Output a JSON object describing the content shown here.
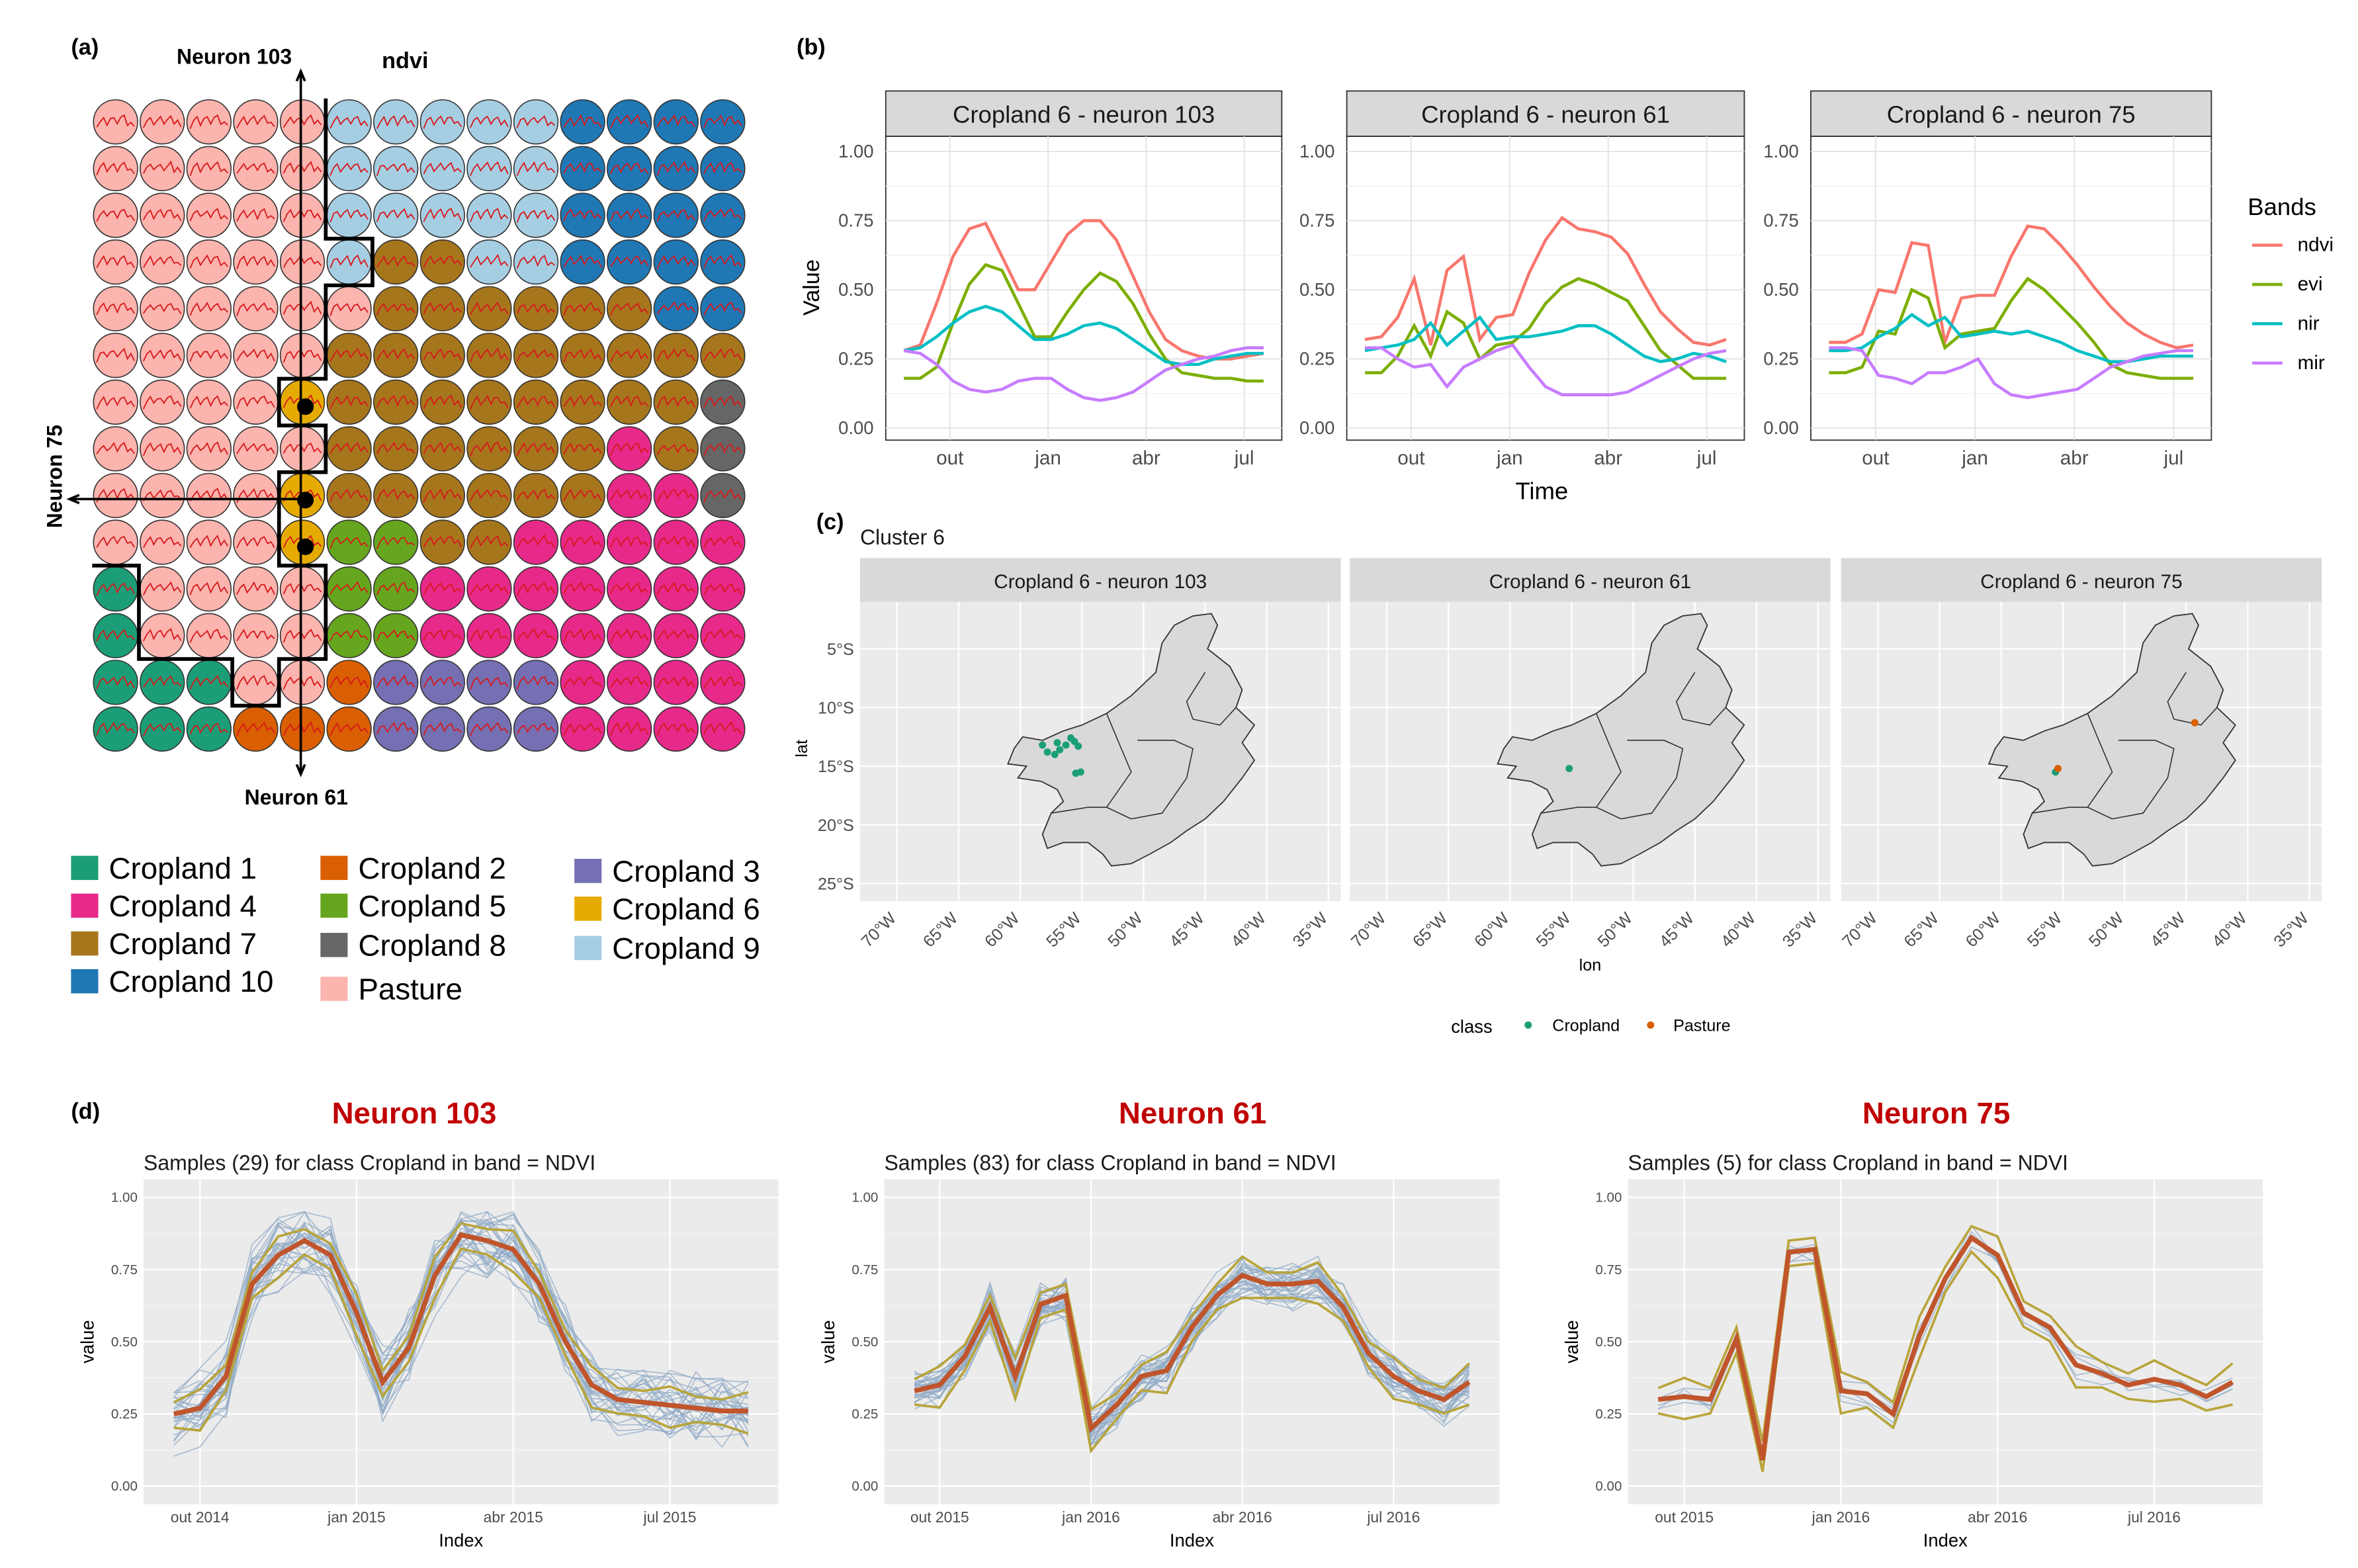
{
  "panel_labels": {
    "a": "(a)",
    "b": "(b)",
    "c": "(c)",
    "d": "(d)"
  },
  "panel_a": {
    "band_label": "ndvi",
    "neuron_labels": {
      "top": "Neuron 103",
      "bottom": "Neuron 61",
      "left": "Neuron 75"
    },
    "grid_size": 14,
    "class_colors": {
      "C1": "#1b9e77",
      "C2": "#d95f02",
      "C3": "#7570b3",
      "C4": "#e7298a",
      "C5": "#66a61e",
      "C6": "#e6ab02",
      "C7": "#a6761d",
      "C8": "#666666",
      "C9": "#a6cee3",
      "C10": "#1f78b4",
      "P": "#fbb4ae"
    },
    "grid": [
      "P P P P P 9 9 9 9 9 10 10 10 10",
      "P P P P P 9 9 9 9 9 10 10 10 10",
      "P P P P P 9 9 9 9 9 10 10 10 10",
      "P P P P P 9 7 7 9 9 10 10 10 10",
      "P P P P P P 7 7 7 7 7 7 10 10",
      "P P P P P 7 7 7 7 7 7 7 7 7",
      "P P P P 6 7 7 7 7 7 7 7 7 8",
      "P P P P P 7 7 7 7 7 7 4 7 8",
      "P P P P 6 7 7 7 7 7 7 4 4 8",
      "P P P P 6 5 5 7 7 4 4 4 4 4",
      "1 P P P P 5 5 4 4 4 4 4 4 4",
      "1 P P P P 5 5 4 4 4 4 4 4 4",
      "1 1 1 P P 2 3 3 3 3 4 4 4 4",
      "1 1 1 2 2 2 3 3 3 3 4 4 4 4"
    ],
    "legend": [
      {
        "label": "Cropland 1",
        "color": "#1b9e77"
      },
      {
        "label": "Cropland 2",
        "color": "#d95f02"
      },
      {
        "label": "Cropland 3",
        "color": "#7570b3"
      },
      {
        "label": "Cropland 4",
        "color": "#e7298a"
      },
      {
        "label": "Cropland 5",
        "color": "#66a61e"
      },
      {
        "label": "Cropland 6",
        "color": "#e6ab02"
      },
      {
        "label": "Cropland 7",
        "color": "#a6761d"
      },
      {
        "label": "Cropland 8",
        "color": "#666666"
      },
      {
        "label": "Cropland 9",
        "color": "#a6cee3"
      },
      {
        "label": "Cropland 10",
        "color": "#1f78b4"
      },
      {
        "label": "Pasture",
        "color": "#fbb4ae"
      }
    ]
  },
  "chart_data": [
    {
      "id": "b",
      "type": "line",
      "ylabel": "Value",
      "xlabel": "Time",
      "ylim": [
        0,
        1
      ],
      "yticks": [
        "0.00",
        "0.25",
        "0.50",
        "0.75",
        "1.00"
      ],
      "xticks": [
        "out",
        "jan",
        "abr",
        "jul"
      ],
      "legend_title": "Bands",
      "band_names": [
        "ndvi",
        "evi",
        "nir",
        "mir"
      ],
      "band_colors": {
        "ndvi": "#f8766d",
        "evi": "#7cae00",
        "nir": "#00bfc4",
        "mir": "#c77cff"
      },
      "facets": [
        {
          "title": "Cropland 6 - neuron  103",
          "series": {
            "ndvi": [
              0.28,
              0.3,
              0.45,
              0.62,
              0.72,
              0.74,
              0.62,
              0.5,
              0.5,
              0.6,
              0.7,
              0.75,
              0.75,
              0.68,
              0.55,
              0.42,
              0.32,
              0.28,
              0.26,
              0.25,
              0.25,
              0.26,
              0.27
            ],
            "evi": [
              0.18,
              0.18,
              0.22,
              0.38,
              0.52,
              0.59,
              0.57,
              0.45,
              0.33,
              0.33,
              0.42,
              0.5,
              0.56,
              0.53,
              0.45,
              0.34,
              0.25,
              0.2,
              0.19,
              0.18,
              0.18,
              0.17,
              0.17
            ],
            "nir": [
              0.28,
              0.29,
              0.33,
              0.38,
              0.42,
              0.44,
              0.42,
              0.37,
              0.32,
              0.32,
              0.34,
              0.37,
              0.38,
              0.36,
              0.32,
              0.28,
              0.24,
              0.23,
              0.23,
              0.25,
              0.26,
              0.27,
              0.27
            ],
            "mir": [
              0.28,
              0.27,
              0.23,
              0.17,
              0.14,
              0.13,
              0.14,
              0.17,
              0.18,
              0.18,
              0.14,
              0.11,
              0.1,
              0.11,
              0.13,
              0.17,
              0.21,
              0.23,
              0.25,
              0.26,
              0.28,
              0.29,
              0.29
            ]
          }
        },
        {
          "title": "Cropland 6 - neuron  61",
          "series": {
            "ndvi": [
              0.32,
              0.33,
              0.4,
              0.54,
              0.3,
              0.57,
              0.62,
              0.32,
              0.4,
              0.41,
              0.56,
              0.68,
              0.76,
              0.72,
              0.71,
              0.69,
              0.63,
              0.52,
              0.42,
              0.36,
              0.31,
              0.3,
              0.32
            ],
            "evi": [
              0.2,
              0.2,
              0.26,
              0.37,
              0.26,
              0.42,
              0.38,
              0.25,
              0.3,
              0.31,
              0.36,
              0.45,
              0.51,
              0.54,
              0.52,
              0.49,
              0.46,
              0.37,
              0.28,
              0.23,
              0.18,
              0.18,
              0.18
            ],
            "nir": [
              0.28,
              0.29,
              0.3,
              0.32,
              0.38,
              0.3,
              0.35,
              0.4,
              0.32,
              0.33,
              0.33,
              0.34,
              0.35,
              0.37,
              0.37,
              0.34,
              0.3,
              0.26,
              0.24,
              0.25,
              0.27,
              0.26,
              0.24
            ],
            "mir": [
              0.29,
              0.29,
              0.25,
              0.22,
              0.23,
              0.15,
              0.22,
              0.25,
              0.28,
              0.3,
              0.22,
              0.15,
              0.12,
              0.12,
              0.12,
              0.12,
              0.13,
              0.16,
              0.19,
              0.22,
              0.25,
              0.27,
              0.28
            ]
          }
        },
        {
          "title": "Cropland 6 - neuron  75",
          "series": {
            "ndvi": [
              0.31,
              0.31,
              0.34,
              0.5,
              0.49,
              0.67,
              0.66,
              0.31,
              0.47,
              0.48,
              0.48,
              0.62,
              0.73,
              0.72,
              0.66,
              0.59,
              0.51,
              0.44,
              0.38,
              0.34,
              0.31,
              0.29,
              0.3
            ],
            "evi": [
              0.2,
              0.2,
              0.22,
              0.35,
              0.34,
              0.5,
              0.47,
              0.29,
              0.34,
              0.35,
              0.36,
              0.46,
              0.54,
              0.5,
              0.44,
              0.38,
              0.31,
              0.23,
              0.2,
              0.19,
              0.18,
              0.18,
              0.18
            ],
            "nir": [
              0.28,
              0.28,
              0.29,
              0.33,
              0.36,
              0.41,
              0.37,
              0.4,
              0.33,
              0.34,
              0.35,
              0.34,
              0.35,
              0.33,
              0.31,
              0.28,
              0.26,
              0.24,
              0.24,
              0.25,
              0.26,
              0.26,
              0.26
            ],
            "mir": [
              0.29,
              0.29,
              0.28,
              0.19,
              0.18,
              0.16,
              0.2,
              0.2,
              0.22,
              0.25,
              0.16,
              0.12,
              0.11,
              0.12,
              0.13,
              0.14,
              0.18,
              0.22,
              0.24,
              0.26,
              0.27,
              0.28,
              0.28
            ]
          }
        }
      ]
    },
    {
      "id": "c",
      "type": "scatter",
      "title": "Cluster 6",
      "xlabel": "lon",
      "ylabel": "lat",
      "xticks": [
        "70°W",
        "65°W",
        "60°W",
        "55°W",
        "50°W",
        "45°W",
        "40°W",
        "35°W"
      ],
      "xtick_values": [
        -70,
        -65,
        -60,
        -55,
        -50,
        -45,
        -40,
        -35
      ],
      "xlim": [
        -73,
        -34
      ],
      "yticks": [
        "5°S",
        "10°S",
        "15°S",
        "20°S",
        "25°S"
      ],
      "ytick_values": [
        -5,
        -10,
        -15,
        -20,
        -25
      ],
      "ylim": [
        -26.5,
        -1
      ],
      "legend_title": "class",
      "legend": [
        {
          "label": "Cropland",
          "color": "#1b9e77"
        },
        {
          "label": "Pasture",
          "color": "#d95f02"
        }
      ],
      "facets": [
        {
          "title": "Cropland 6 - neuron  103",
          "points": [
            {
              "lon": -58.2,
              "lat": -13.2,
              "class": "Cropland"
            },
            {
              "lon": -57.8,
              "lat": -13.8,
              "class": "Cropland"
            },
            {
              "lon": -57.2,
              "lat": -14.0,
              "class": "Cropland"
            },
            {
              "lon": -56.8,
              "lat": -13.6,
              "class": "Cropland"
            },
            {
              "lon": -56.3,
              "lat": -13.2,
              "class": "Cropland"
            },
            {
              "lon": -55.9,
              "lat": -12.6,
              "class": "Cropland"
            },
            {
              "lon": -55.6,
              "lat": -12.9,
              "class": "Cropland"
            },
            {
              "lon": -55.3,
              "lat": -13.3,
              "class": "Cropland"
            },
            {
              "lon": -55.5,
              "lat": -15.6,
              "class": "Cropland"
            },
            {
              "lon": -55.1,
              "lat": -15.5,
              "class": "Cropland"
            },
            {
              "lon": -57.0,
              "lat": -13.0,
              "class": "Cropland"
            }
          ]
        },
        {
          "title": "Cropland 6 - neuron  61",
          "points": [
            {
              "lon": -55.2,
              "lat": -15.2,
              "class": "Cropland"
            }
          ]
        },
        {
          "title": "Cropland 6 - neuron  75",
          "points": [
            {
              "lon": -55.6,
              "lat": -15.5,
              "class": "Cropland"
            },
            {
              "lon": -55.4,
              "lat": -15.2,
              "class": "Pasture"
            },
            {
              "lon": -44.3,
              "lat": -11.3,
              "class": "Pasture"
            }
          ]
        }
      ]
    },
    {
      "id": "d",
      "type": "line",
      "xlabel": "Index",
      "ylabel": "value",
      "ylim": [
        0,
        1
      ],
      "yticks": [
        "0.00",
        "0.25",
        "0.50",
        "0.75",
        "1.00"
      ],
      "facets": [
        {
          "heading": "Neuron 103",
          "title": "Samples (29) for class Cropland in band = NDVI",
          "xticks": [
            "out 2014",
            "jan 2015",
            "abr 2015",
            "jul 2015"
          ],
          "median": [
            0.25,
            0.27,
            0.38,
            0.7,
            0.8,
            0.85,
            0.8,
            0.6,
            0.36,
            0.48,
            0.73,
            0.87,
            0.85,
            0.82,
            0.7,
            0.5,
            0.35,
            0.3,
            0.29,
            0.28,
            0.27,
            0.26,
            0.26
          ],
          "samples": 29,
          "spread": 0.11
        },
        {
          "heading": "Neuron 61",
          "title": "Samples (83) for class Cropland in band = NDVI",
          "xticks": [
            "out 2015",
            "jan 2016",
            "abr 2016",
            "jul 2016"
          ],
          "median": [
            0.33,
            0.35,
            0.45,
            0.62,
            0.38,
            0.63,
            0.66,
            0.2,
            0.28,
            0.38,
            0.4,
            0.55,
            0.66,
            0.73,
            0.7,
            0.7,
            0.71,
            0.62,
            0.46,
            0.38,
            0.33,
            0.3,
            0.36
          ],
          "samples": 83,
          "spread": 0.07
        },
        {
          "heading": "Neuron 75",
          "title": "Samples (5) for class Cropland in band = NDVI",
          "xticks": [
            "out 2015",
            "jan 2016",
            "abr 2016",
            "jul 2016"
          ],
          "median": [
            0.3,
            0.31,
            0.3,
            0.51,
            0.09,
            0.81,
            0.82,
            0.33,
            0.32,
            0.25,
            0.52,
            0.72,
            0.86,
            0.8,
            0.6,
            0.55,
            0.42,
            0.39,
            0.35,
            0.37,
            0.35,
            0.31,
            0.36
          ],
          "samples": 5,
          "spread": 0.04
        }
      ]
    }
  ]
}
